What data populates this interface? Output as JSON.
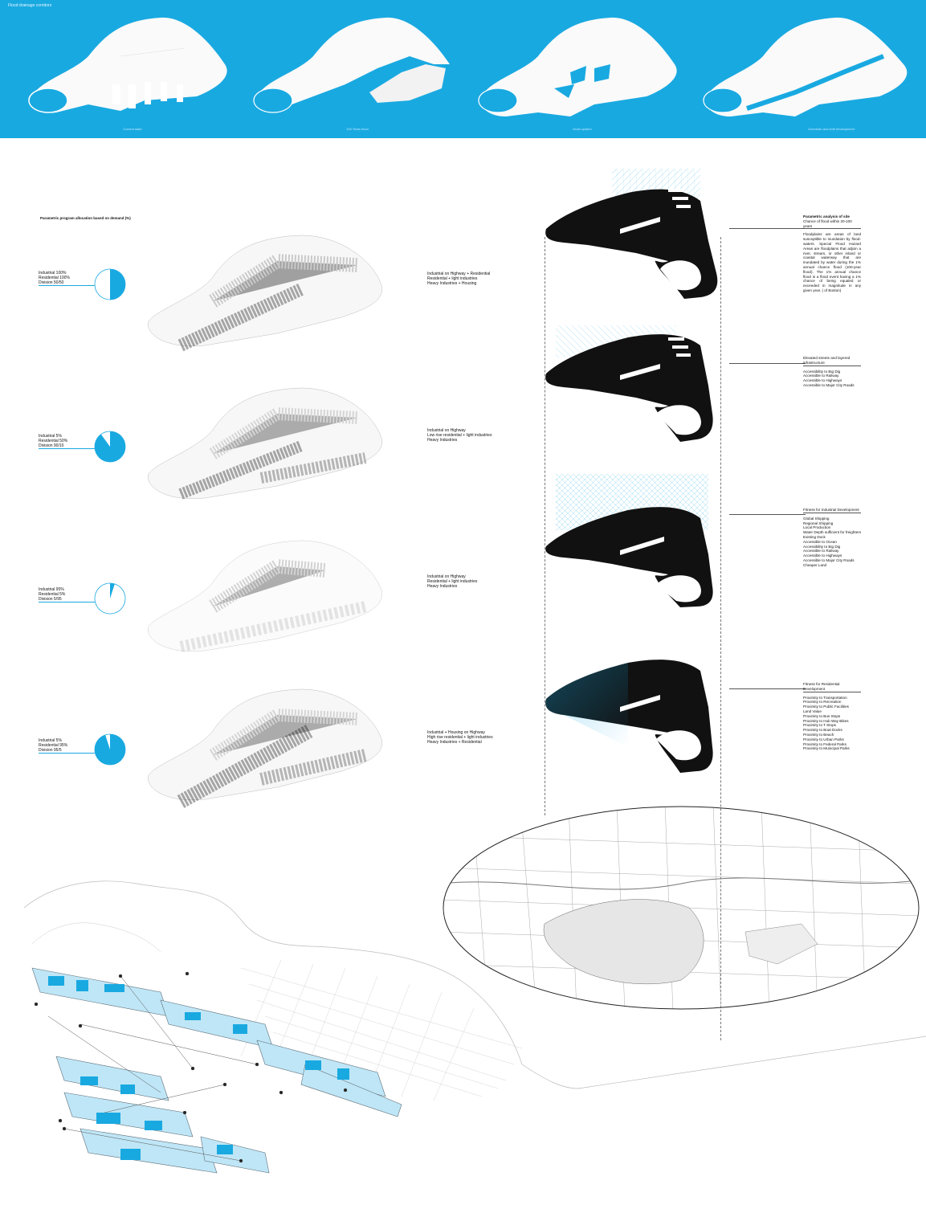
{
  "header": {
    "title": "Flood drainage corridors",
    "phases": [
      {
        "label": "Current state"
      },
      {
        "label": "100 Years flood"
      },
      {
        "label": "Drain system"
      },
      {
        "label": "Overdrain and shift development"
      }
    ]
  },
  "allocation": {
    "title": "Parametric program allocation based on demand (%)",
    "scenarios": [
      {
        "lines": [
          "Industrial 100%",
          "Residential 100%",
          "Division 50/50"
        ],
        "share": 0.5,
        "notes": [
          "Industrial on Highway + Residential",
          "Residential + light industries",
          "Heavy Industries + Housing"
        ]
      },
      {
        "lines": [
          "Industrial 5%",
          "Residential 50%",
          "Division 90/10"
        ],
        "share": 0.9,
        "notes": [
          "Industrial on Highway",
          "Low rise residential + light industries",
          "Heavy Industries"
        ]
      },
      {
        "lines": [
          "Industrial 95%",
          "Residential 5%",
          "Division 5/95"
        ],
        "share": 0.05,
        "notes": [
          "Industrial on Highway",
          "Residential + light industries",
          "Heavy Industries"
        ]
      },
      {
        "lines": [
          "Industrial 5%",
          "Residential 95%",
          "Division 95/5"
        ],
        "share": 0.95,
        "notes": [
          "Industrial + Housing on Highway",
          "High rise residential + light industries",
          "Heavy Industries + Residential"
        ]
      }
    ]
  },
  "analysis": {
    "title": "Parametric analysis of site",
    "blocks": [
      {
        "heading": "Chance of flood within 20-100 years",
        "body": "Floodplains are areas of land susceptible to inundation by flood-waters. Special Flood Hazard Areas are floodplains that adjoin a river, stream, or other inland or coastal waterway that are inundated by water during the 1% annual chance flood (100-year flood). The 1% annual chance flood is a flood event having a 1% chance of being equaled or exceeded in magnitude in any given year. ( of Boston)",
        "items": []
      },
      {
        "heading": "Elevated streets and layered infrastructure",
        "body": "",
        "items": [
          "Accessibility to Big Dig",
          "Accessible to Railway",
          "Accessible to Highways",
          "Accessible to Major City Roads"
        ]
      },
      {
        "heading": "Fitness for Industrial  Development",
        "body": "",
        "items": [
          "Global Shipping",
          "Regional Shipping",
          "Local Production",
          "Water Depth sufficient for freighters",
          "Existing Dock",
          "Accessible to Ocean",
          "Accessibility to Big Dig",
          "Accessible to Railway",
          "Accessible to Highways",
          "Accessible to Major City Roads",
          "Cheaper Land"
        ]
      },
      {
        "heading": "Fitness for Residential  Development",
        "body": "",
        "items": [
          "Proximity to Transportation",
          "Proximity to Recreation",
          "Proximity to Public Facilities",
          "Land Value",
          "Proximity to Bus Stops",
          "Proximity to Hub Way Bikes",
          "Proximity to T Stops",
          "Proximity to Boat Docks",
          "Proximity to Beach",
          "Proximity to Urban Parks",
          "Proximity to Federal Parks",
          "Proximity to Municipal Parks"
        ]
      }
    ]
  },
  "colors": {
    "accent": "#19a9e1",
    "dark": "#111111",
    "ink": "#222222"
  }
}
